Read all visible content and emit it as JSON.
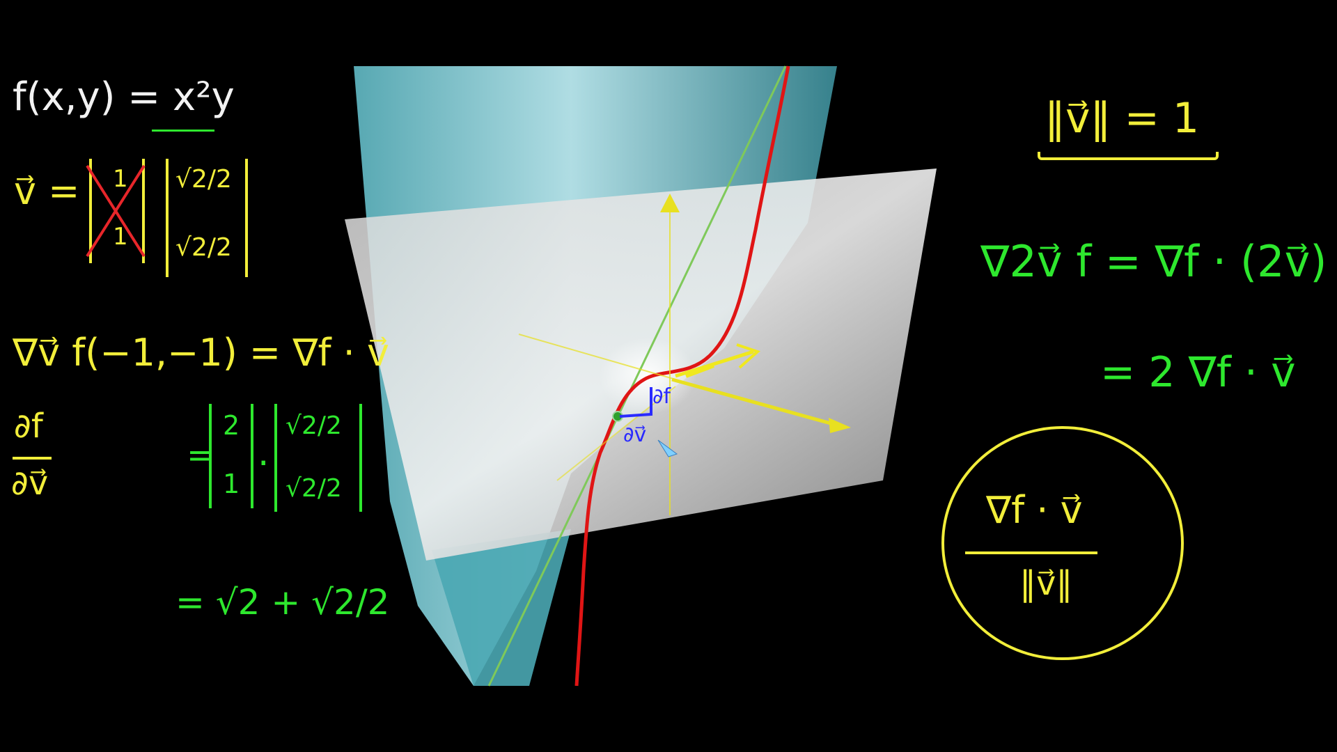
{
  "colors": {
    "background": "#000000",
    "ink_white": "#f2f2f2",
    "ink_yellow": "#f2ee3a",
    "ink_green": "#2ee82e",
    "ink_red": "#e8262a",
    "ink_blue": "#2a2aff",
    "surface_cyan": "#8fd3de",
    "plane_gray": "#c8c8c8",
    "curve_red": "#e01515",
    "line_green": "#7fc95a",
    "axis_yellow": "#e8e020"
  },
  "left_panel": {
    "function_def": "f(x,y) = x²y",
    "vector_label": "v⃗ =",
    "crossed_vector": [
      "1",
      "1"
    ],
    "unit_vector": [
      "√2/2",
      "√2/2"
    ],
    "directional_def": "∇v⃗ f(−1,−1) = ∇f · v⃗",
    "partial_num": "∂f",
    "partial_den": "∂v⃗",
    "gradient_vector": [
      "2",
      "1"
    ],
    "dot_symbol": "·",
    "dot_vector": [
      "√2/2",
      "√2/2"
    ],
    "result": "= √2 + √2/2"
  },
  "right_panel": {
    "norm_condition": "‖v⃗‖ = 1",
    "scaled_line1": "∇2v⃗ f = ∇f · (2v⃗)",
    "scaled_line2": "= 2 ∇f · v⃗",
    "circled_numerator": "∇f · v⃗",
    "circled_denominator": "‖v⃗‖"
  },
  "graph_labels": {
    "partial_top": "∂f",
    "partial_bottom": "∂v⃗"
  },
  "icons": [
    "axis-arrow-icon",
    "vector-arrow-icon",
    "cursor-pointer-icon"
  ]
}
